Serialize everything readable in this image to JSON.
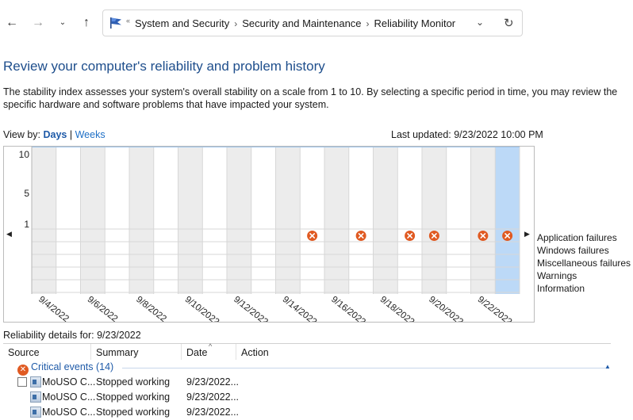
{
  "address_bar": {
    "breadcrumbs": [
      "System and Security",
      "Security and Maintenance",
      "Reliability Monitor"
    ],
    "icons": {
      "back": "arrow-left-icon",
      "forward": "arrow-right-icon",
      "recent": "chevron-down-icon",
      "up": "arrow-up-icon",
      "dropdown": "chevron-down-icon",
      "refresh": "refresh-icon"
    }
  },
  "page": {
    "title": "Review your computer's reliability and problem history",
    "description": "The stability index assesses your system's overall stability on a scale from 1 to 10. By selecting a specific period in time, you may review the specific hardware and software problems that have impacted your system.",
    "view_by_label": "View by:",
    "view_days": "Days",
    "view_separator": "|",
    "view_weeks": "Weeks",
    "last_updated": "Last updated: 9/23/2022 10:00 PM"
  },
  "chart_data": {
    "type": "table",
    "y_ticks": [
      "10",
      "5",
      "1"
    ],
    "ylim": [
      1,
      10
    ],
    "date_labels": [
      "9/4/2022",
      "9/6/2022",
      "9/8/2022",
      "9/10/2022",
      "9/12/2022",
      "9/14/2022",
      "9/16/2022",
      "9/18/2022",
      "9/20/2022",
      "9/22/2022"
    ],
    "columns": 20,
    "first_day": 4,
    "selected_day": 23,
    "rows": [
      "Application failures",
      "Windows failures",
      "Miscellaneous failures",
      "Warnings",
      "Information"
    ],
    "application_failure_days": [
      15,
      17,
      19,
      20,
      22,
      23
    ],
    "colors": {
      "shade": "#ececec",
      "selected": "#bcd9f7",
      "failure": "#e05a22",
      "grid": "#d7d7d7"
    }
  },
  "details": {
    "title": "Reliability details for: 9/23/2022",
    "columns": [
      "Source",
      "Summary",
      "Date",
      "Action"
    ],
    "critical_group": "Critical events (14)",
    "rows": [
      {
        "source": "MoUSO C...",
        "summary": "Stopped working",
        "date": "9/23/2022..."
      },
      {
        "source": "MoUSO C...",
        "summary": "Stopped working",
        "date": "9/23/2022..."
      },
      {
        "source": "MoUSO C...",
        "summary": "Stopped working",
        "date": "9/23/2022..."
      }
    ]
  }
}
